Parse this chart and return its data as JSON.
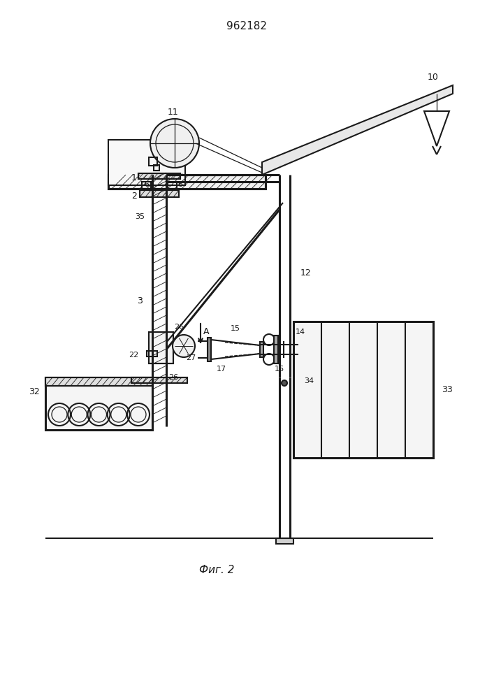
{
  "title": "962182",
  "caption": "Фиг. 2",
  "bg_color": "#ffffff",
  "line_color": "#1a1a1a",
  "fig_width": 7.07,
  "fig_height": 10.0,
  "lw_main": 1.5,
  "lw_thick": 2.2,
  "lw_thin": 0.9
}
